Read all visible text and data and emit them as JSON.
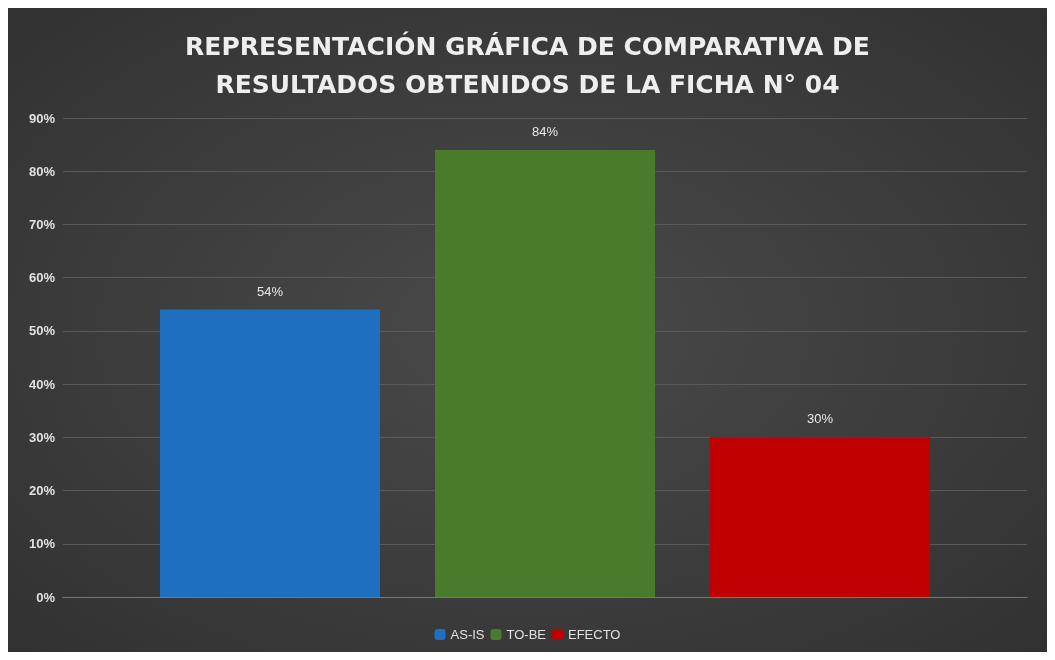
{
  "chart_data": {
    "type": "bar",
    "title": "REPRESENTACIÓN GRÁFICA DE COMPARATIVA DE\nRESULTADOS OBTENIDOS DE LA FICHA N° 04",
    "categories": [
      null
    ],
    "series": [
      {
        "name": "AS-IS",
        "color": "#1f6fc0",
        "values": [
          54
        ],
        "value_labels": [
          "54%"
        ]
      },
      {
        "name": "TO-BE",
        "color": "#4a7a2c",
        "values": [
          84
        ],
        "value_labels": [
          "84%"
        ]
      },
      {
        "name": "EFECTO",
        "color": "#c00000",
        "values": [
          30
        ],
        "value_labels": [
          "30%"
        ]
      }
    ],
    "ylim": [
      0,
      90
    ],
    "yticks": [
      {
        "value": 0,
        "label": "0%"
      },
      {
        "value": 10,
        "label": "10%"
      },
      {
        "value": 20,
        "label": "20%"
      },
      {
        "value": 30,
        "label": "30%"
      },
      {
        "value": 40,
        "label": "40%"
      },
      {
        "value": 50,
        "label": "50%"
      },
      {
        "value": 60,
        "label": "60%"
      },
      {
        "value": 70,
        "label": "70%"
      },
      {
        "value": 80,
        "label": "80%"
      },
      {
        "value": 90,
        "label": "90%"
      }
    ],
    "grid": "y",
    "legend": "bottom"
  }
}
